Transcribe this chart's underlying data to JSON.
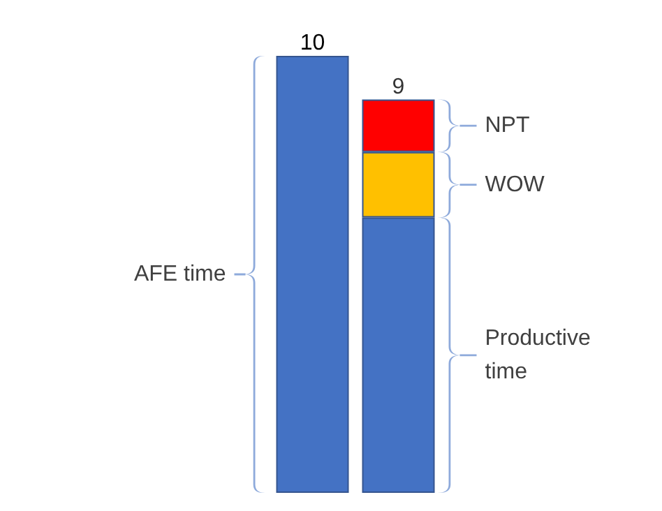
{
  "chart_data": {
    "type": "bar",
    "stacked": true,
    "categories": [
      null,
      null
    ],
    "series": [
      {
        "name": "AFE time",
        "color": "#4472c4",
        "values": [
          10,
          null
        ],
        "value_labels": [
          "10",
          null
        ]
      },
      {
        "name": "Productive time",
        "color": "#4472c4",
        "values": [
          null,
          6.3
        ]
      },
      {
        "name": "WOW",
        "color": "#ffc000",
        "values": [
          null,
          1.5
        ]
      },
      {
        "name": "NPT",
        "color": "#ff0000",
        "values": [
          null,
          1.2
        ]
      }
    ],
    "totals": [
      null,
      "9"
    ]
  }
}
